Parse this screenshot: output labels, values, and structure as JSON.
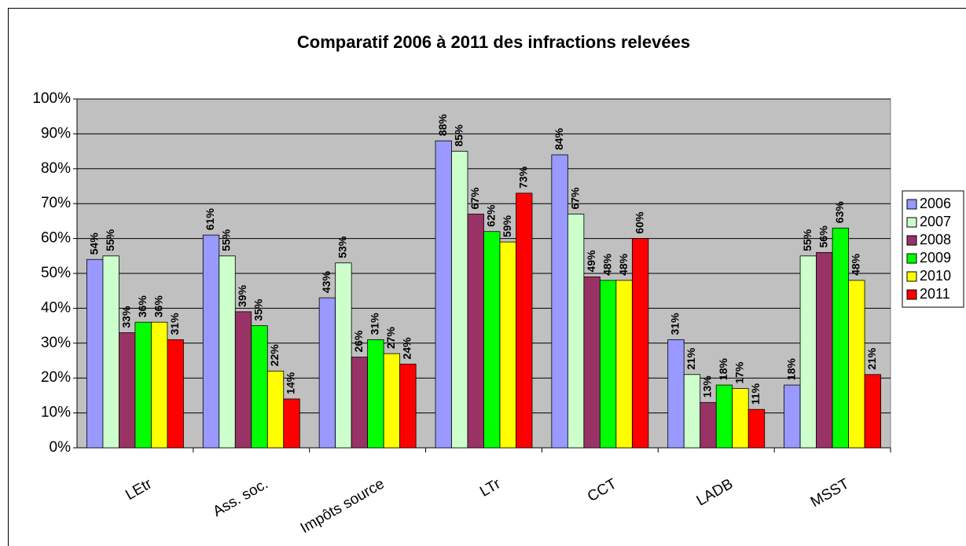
{
  "chart_data": {
    "type": "bar",
    "title": "Comparatif 2006 à 2011 des infractions relevées",
    "categories": [
      "LEtr",
      "Ass. soc.",
      "Impôts source",
      "LTr",
      "CCT",
      "LADB",
      "MSST"
    ],
    "series": [
      {
        "name": "2006",
        "color": "#9999ff",
        "values": [
          54,
          61,
          43,
          88,
          84,
          31,
          18
        ],
        "value_labels": [
          "54%",
          "61%",
          "43%",
          "88%",
          "84%",
          "31%",
          "18%"
        ]
      },
      {
        "name": "2007",
        "color": "#ccffcc",
        "values": [
          55,
          55,
          53,
          85,
          67,
          21,
          55
        ],
        "value_labels": [
          "55%",
          "55%",
          "53%",
          "85%",
          "67%",
          "21%",
          "55%"
        ]
      },
      {
        "name": "2008",
        "color": "#993366",
        "values": [
          33,
          39,
          26,
          67,
          49,
          13,
          56
        ],
        "value_labels": [
          "33%",
          "39%",
          "26%",
          "67%",
          "49%",
          "13%",
          "56%"
        ]
      },
      {
        "name": "2009",
        "color": "#00ff00",
        "values": [
          36,
          35,
          31,
          62,
          48,
          18,
          63
        ],
        "value_labels": [
          "36%",
          "35%",
          "31%",
          "62%",
          "48%",
          "18%",
          "63%"
        ]
      },
      {
        "name": "2010",
        "color": "#ffff00",
        "values": [
          36,
          22,
          27,
          59,
          48,
          17,
          48
        ],
        "value_labels": [
          "36%",
          "22%",
          "27%",
          "59%",
          "48%",
          "17%",
          "48%"
        ]
      },
      {
        "name": "2011",
        "color": "#ff0000",
        "values": [
          31,
          14,
          24,
          73,
          60,
          11,
          21
        ],
        "value_labels": [
          "31%",
          "14%",
          "24%",
          "73%",
          "60%",
          "11%",
          "21%"
        ]
      }
    ],
    "ylim": [
      0,
      100
    ],
    "yticks": [
      {
        "value": 0,
        "label": "0%"
      },
      {
        "value": 10,
        "label": "10%"
      },
      {
        "value": 20,
        "label": "20%"
      },
      {
        "value": 30,
        "label": "30%"
      },
      {
        "value": 40,
        "label": "40%"
      },
      {
        "value": 50,
        "label": "50%"
      },
      {
        "value": 60,
        "label": "60%"
      },
      {
        "value": 70,
        "label": "70%"
      },
      {
        "value": 80,
        "label": "80%"
      },
      {
        "value": 90,
        "label": "90%"
      },
      {
        "value": 100,
        "label": "100%"
      }
    ],
    "grid": true,
    "legend": "right"
  }
}
